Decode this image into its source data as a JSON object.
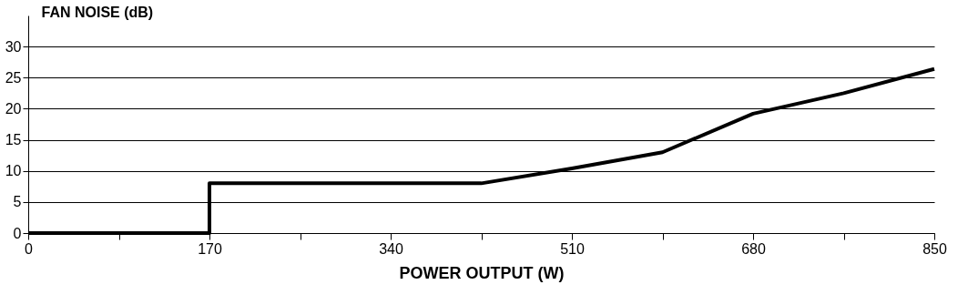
{
  "chart_data": {
    "type": "line",
    "xlabel": "POWER OUTPUT (W)",
    "ylabel": "FAN NOISE (dB)",
    "x": [
      0,
      170,
      170,
      425,
      510,
      595,
      680,
      765,
      850
    ],
    "series": [
      {
        "color": "#000000",
        "values": [
          0,
          0,
          8,
          8,
          10.4,
          13,
          19.2,
          22.5,
          26.4
        ]
      }
    ],
    "xlim": [
      0,
      850
    ],
    "xticks": [
      0,
      {
        "value": 85,
        "label": null
      },
      170,
      {
        "value": 255,
        "label": null
      },
      340,
      {
        "value": 425,
        "label": null
      },
      510,
      {
        "value": 595,
        "label": null
      },
      680,
      {
        "value": 765,
        "label": null
      },
      850
    ],
    "ylim": [
      0,
      35
    ],
    "yticks": [
      0,
      5,
      10,
      15,
      20,
      25,
      30
    ],
    "grid": "y",
    "marker": "none",
    "line_style": "solid"
  }
}
